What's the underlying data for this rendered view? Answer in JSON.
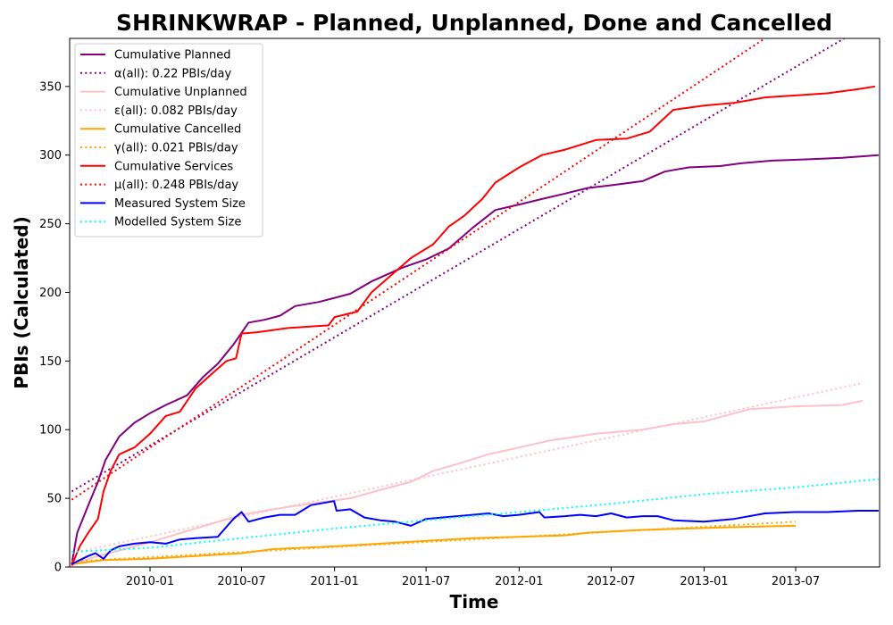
{
  "chart_data": {
    "type": "line",
    "title": "SHRINKWRAP - Planned, Unplanned, Done  and Cancelled",
    "xlabel": "Time",
    "ylabel": "PBIs (Calculated)",
    "xlim": [
      "2009-07-26",
      "2013-12-14"
    ],
    "ylim": [
      0,
      385
    ],
    "xticks": [
      "2010-01",
      "2010-07",
      "2011-01",
      "2011-07",
      "2012-01",
      "2012-07",
      "2013-01",
      "2013-07"
    ],
    "yticks": [
      0,
      50,
      100,
      150,
      200,
      250,
      300,
      350
    ],
    "grid": false,
    "legend_position": "top-left",
    "series": [
      {
        "name": "Cumulative Planned",
        "color": "#800080",
        "style": "solid",
        "points": [
          [
            "2009-07-30",
            2
          ],
          [
            "2009-08-10",
            25
          ],
          [
            "2009-09-01",
            45
          ],
          [
            "2009-09-20",
            62
          ],
          [
            "2009-10-05",
            78
          ],
          [
            "2009-11-01",
            95
          ],
          [
            "2009-12-01",
            105
          ],
          [
            "2010-01-01",
            112
          ],
          [
            "2010-02-01",
            118
          ],
          [
            "2010-03-15",
            125
          ],
          [
            "2010-04-15",
            138
          ],
          [
            "2010-05-15",
            148
          ],
          [
            "2010-06-15",
            162
          ],
          [
            "2010-07-15",
            178
          ],
          [
            "2010-08-15",
            180
          ],
          [
            "2010-09-15",
            183
          ],
          [
            "2010-10-15",
            190
          ],
          [
            "2010-12-01",
            193
          ],
          [
            "2011-01-01",
            196
          ],
          [
            "2011-02-01",
            199
          ],
          [
            "2011-03-15",
            208
          ],
          [
            "2011-05-15",
            218
          ],
          [
            "2011-07-01",
            224
          ],
          [
            "2011-08-15",
            232
          ],
          [
            "2011-10-01",
            247
          ],
          [
            "2011-11-15",
            260
          ],
          [
            "2012-01-01",
            264
          ],
          [
            "2012-02-15",
            268
          ],
          [
            "2012-04-01",
            272
          ],
          [
            "2012-05-15",
            276
          ],
          [
            "2012-07-01",
            278
          ],
          [
            "2012-09-01",
            281
          ],
          [
            "2012-10-15",
            288
          ],
          [
            "2012-12-01",
            291
          ],
          [
            "2013-02-01",
            292
          ],
          [
            "2013-03-15",
            294
          ],
          [
            "2013-05-15",
            296
          ],
          [
            "2013-08-01",
            297
          ],
          [
            "2013-10-01",
            298
          ],
          [
            "2013-12-12",
            300
          ]
        ]
      },
      {
        "name": "α(all): 0.22 PBIs/day",
        "color": "#800080",
        "style": "dotted",
        "points": [
          [
            "2009-07-30",
            55
          ],
          [
            "2013-10-05",
            385
          ]
        ]
      },
      {
        "name": "Cumulative Unplanned",
        "color": "#ffc0cb",
        "style": "solid",
        "points": [
          [
            "2009-07-30",
            1
          ],
          [
            "2009-09-01",
            6
          ],
          [
            "2009-11-01",
            12
          ],
          [
            "2010-01-01",
            18
          ],
          [
            "2010-04-01",
            28
          ],
          [
            "2010-07-01",
            38
          ],
          [
            "2010-09-01",
            42
          ],
          [
            "2010-12-01",
            47
          ],
          [
            "2011-02-01",
            50
          ],
          [
            "2011-04-01",
            56
          ],
          [
            "2011-06-01",
            62
          ],
          [
            "2011-07-15",
            70
          ],
          [
            "2011-09-01",
            75
          ],
          [
            "2011-11-01",
            82
          ],
          [
            "2012-01-01",
            87
          ],
          [
            "2012-03-01",
            92
          ],
          [
            "2012-06-01",
            97
          ],
          [
            "2012-09-01",
            100
          ],
          [
            "2012-11-01",
            104
          ],
          [
            "2013-01-01",
            106
          ],
          [
            "2013-04-01",
            115
          ],
          [
            "2013-07-01",
            117
          ],
          [
            "2013-10-01",
            118
          ],
          [
            "2013-11-10",
            121
          ]
        ]
      },
      {
        "name": "ε(all): 0.082 PBIs/day",
        "color": "#ffc0cb",
        "style": "dotted",
        "points": [
          [
            "2009-07-30",
            10
          ],
          [
            "2013-11-10",
            134
          ]
        ]
      },
      {
        "name": "Cumulative Cancelled",
        "color": "#ffa500",
        "style": "solid",
        "points": [
          [
            "2009-07-30",
            2
          ],
          [
            "2009-10-01",
            5
          ],
          [
            "2010-01-01",
            6
          ],
          [
            "2010-04-01",
            8
          ],
          [
            "2010-07-01",
            10
          ],
          [
            "2010-09-01",
            13
          ],
          [
            "2011-01-01",
            15
          ],
          [
            "2011-04-01",
            17
          ],
          [
            "2011-07-01",
            19
          ],
          [
            "2011-10-01",
            21
          ],
          [
            "2012-01-01",
            22
          ],
          [
            "2012-04-01",
            23
          ],
          [
            "2012-05-15",
            25
          ],
          [
            "2012-09-01",
            27
          ],
          [
            "2012-12-01",
            28
          ],
          [
            "2013-03-01",
            29
          ],
          [
            "2013-07-01",
            30
          ]
        ]
      },
      {
        "name": "γ(all): 0.021 PBIs/day",
        "color": "#ffa500",
        "style": "dotted",
        "points": [
          [
            "2009-07-30",
            4
          ],
          [
            "2013-07-01",
            33
          ]
        ]
      },
      {
        "name": "Cumulative Services",
        "color": "#ff0000",
        "style": "solid",
        "points": [
          [
            "2009-07-30",
            1
          ],
          [
            "2009-08-15",
            15
          ],
          [
            "2009-09-01",
            25
          ],
          [
            "2009-09-20",
            35
          ],
          [
            "2009-10-01",
            55
          ],
          [
            "2009-10-15",
            70
          ],
          [
            "2009-11-01",
            82
          ],
          [
            "2009-12-01",
            87
          ],
          [
            "2010-01-01",
            97
          ],
          [
            "2010-02-01",
            110
          ],
          [
            "2010-03-01",
            113
          ],
          [
            "2010-04-01",
            130
          ],
          [
            "2010-05-01",
            140
          ],
          [
            "2010-06-01",
            150
          ],
          [
            "2010-06-20",
            152
          ],
          [
            "2010-07-01",
            170
          ],
          [
            "2010-08-01",
            171
          ],
          [
            "2010-10-01",
            174
          ],
          [
            "2010-12-20",
            176
          ],
          [
            "2011-01-01",
            182
          ],
          [
            "2011-02-15",
            186
          ],
          [
            "2011-03-15",
            200
          ],
          [
            "2011-04-15",
            210
          ],
          [
            "2011-06-01",
            225
          ],
          [
            "2011-07-15",
            235
          ],
          [
            "2011-08-15",
            248
          ],
          [
            "2011-09-15",
            256
          ],
          [
            "2011-10-20",
            268
          ],
          [
            "2011-11-15",
            280
          ],
          [
            "2012-01-01",
            291
          ],
          [
            "2012-02-15",
            300
          ],
          [
            "2012-04-01",
            304
          ],
          [
            "2012-06-01",
            311
          ],
          [
            "2012-08-01",
            312
          ],
          [
            "2012-09-15",
            317
          ],
          [
            "2012-11-01",
            333
          ],
          [
            "2013-01-01",
            336
          ],
          [
            "2013-03-01",
            338
          ],
          [
            "2013-05-01",
            342
          ],
          [
            "2013-09-01",
            345
          ],
          [
            "2013-11-01",
            348
          ],
          [
            "2013-12-05",
            350
          ]
        ]
      },
      {
        "name": "μ(all): 0.248 PBIs/day",
        "color": "#ff0000",
        "style": "dotted",
        "points": [
          [
            "2009-07-30",
            49
          ],
          [
            "2013-05-01",
            385
          ]
        ]
      },
      {
        "name": "Measured System Size",
        "color": "#0000ff",
        "style": "solid",
        "points": [
          [
            "2009-07-30",
            2
          ],
          [
            "2009-08-15",
            5
          ],
          [
            "2009-09-01",
            8
          ],
          [
            "2009-09-15",
            10
          ],
          [
            "2009-10-01",
            6
          ],
          [
            "2009-10-15",
            12
          ],
          [
            "2009-11-01",
            15
          ],
          [
            "2009-12-01",
            17
          ],
          [
            "2010-01-01",
            18
          ],
          [
            "2010-02-01",
            17
          ],
          [
            "2010-03-01",
            20
          ],
          [
            "2010-04-01",
            21
          ],
          [
            "2010-05-15",
            22
          ],
          [
            "2010-06-15",
            35
          ],
          [
            "2010-07-01",
            40
          ],
          [
            "2010-07-15",
            33
          ],
          [
            "2010-08-15",
            36
          ],
          [
            "2010-09-15",
            38
          ],
          [
            "2010-10-15",
            38
          ],
          [
            "2010-11-15",
            45
          ],
          [
            "2010-12-31",
            48
          ],
          [
            "2011-01-05",
            41
          ],
          [
            "2011-02-01",
            42
          ],
          [
            "2011-03-01",
            36
          ],
          [
            "2011-04-01",
            34
          ],
          [
            "2011-05-01",
            33
          ],
          [
            "2011-06-01",
            30
          ],
          [
            "2011-07-01",
            35
          ],
          [
            "2011-08-01",
            36
          ],
          [
            "2011-09-01",
            37
          ],
          [
            "2011-10-01",
            38
          ],
          [
            "2011-11-01",
            39
          ],
          [
            "2011-12-01",
            37
          ],
          [
            "2012-01-01",
            38
          ],
          [
            "2012-02-10",
            40
          ],
          [
            "2012-02-20",
            36
          ],
          [
            "2012-04-01",
            37
          ],
          [
            "2012-05-01",
            38
          ],
          [
            "2012-06-01",
            37
          ],
          [
            "2012-07-01",
            39
          ],
          [
            "2012-08-01",
            36
          ],
          [
            "2012-09-01",
            37
          ],
          [
            "2012-10-01",
            37
          ],
          [
            "2012-11-01",
            34
          ],
          [
            "2013-01-01",
            33
          ],
          [
            "2013-03-01",
            35
          ],
          [
            "2013-05-01",
            39
          ],
          [
            "2013-07-01",
            40
          ],
          [
            "2013-09-01",
            40
          ],
          [
            "2013-11-01",
            41
          ],
          [
            "2013-12-12",
            41
          ]
        ]
      },
      {
        "name": "Modelled System Size",
        "color": "#00ffff",
        "style": "dotted",
        "points": [
          [
            "2009-07-30",
            11
          ],
          [
            "2010-01-01",
            14
          ],
          [
            "2010-07-01",
            21
          ],
          [
            "2011-01-01",
            28
          ],
          [
            "2011-07-01",
            34
          ],
          [
            "2012-01-01",
            40
          ],
          [
            "2012-07-01",
            46
          ],
          [
            "2013-01-01",
            53
          ],
          [
            "2013-07-01",
            58
          ],
          [
            "2013-12-12",
            64
          ]
        ]
      }
    ]
  }
}
